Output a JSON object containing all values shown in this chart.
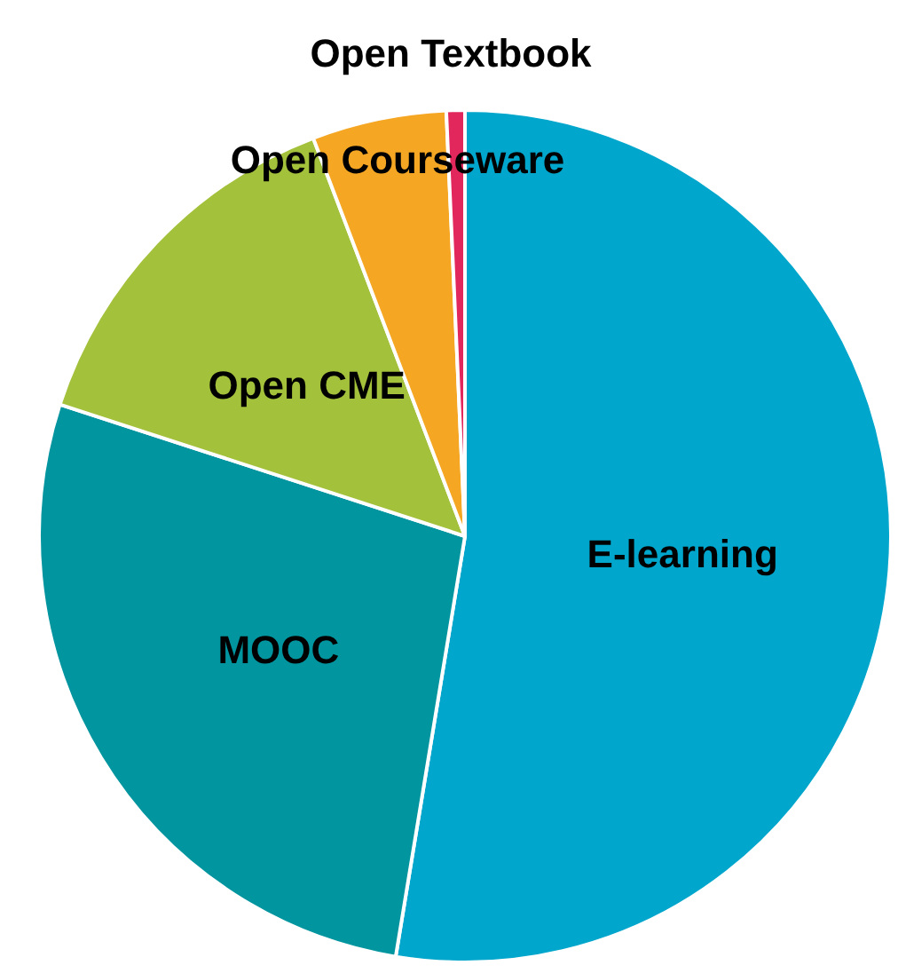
{
  "chart_data": {
    "type": "pie",
    "categories": [
      "E-learning",
      "MOOC",
      "Open CME",
      "Open Courseware",
      "Open Textbook"
    ],
    "values": [
      52.6,
      27.4,
      14.2,
      5.1,
      0.7
    ],
    "colors": [
      "#00a6cb",
      "#00959f",
      "#a3c13a",
      "#f5a623",
      "#e2275c"
    ]
  }
}
